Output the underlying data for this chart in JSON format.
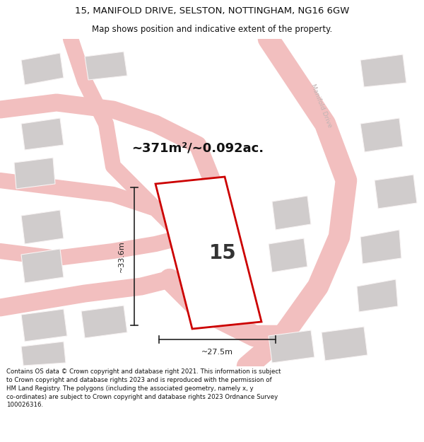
{
  "title_line1": "15, MANIFOLD DRIVE, SELSTON, NOTTINGHAM, NG16 6GW",
  "title_line2": "Map shows position and indicative extent of the property.",
  "footer_text": "Contains OS data © Crown copyright and database right 2021. This information is subject to Crown copyright and database rights 2023 and is reproduced with the permission of HM Land Registry. The polygons (including the associated geometry, namely x, y co-ordinates) are subject to Crown copyright and database rights 2023 Ordnance Survey 100026316.",
  "area_text": "~371m²/~0.092ac.",
  "number_text": "15",
  "dim_width": "~27.5m",
  "dim_height": "~33.6m",
  "bg_color": "#eeecec",
  "road_color": "#f2bfbf",
  "building_color": "#d0cccc",
  "plot_outline_color": "#cc0000",
  "plot_fill_color": "#ffffff",
  "street_label_color": "#c0b4b4",
  "dim_color": "#222222",
  "title_color": "#111111",
  "footer_color": "#111111",
  "white": "#ffffff"
}
